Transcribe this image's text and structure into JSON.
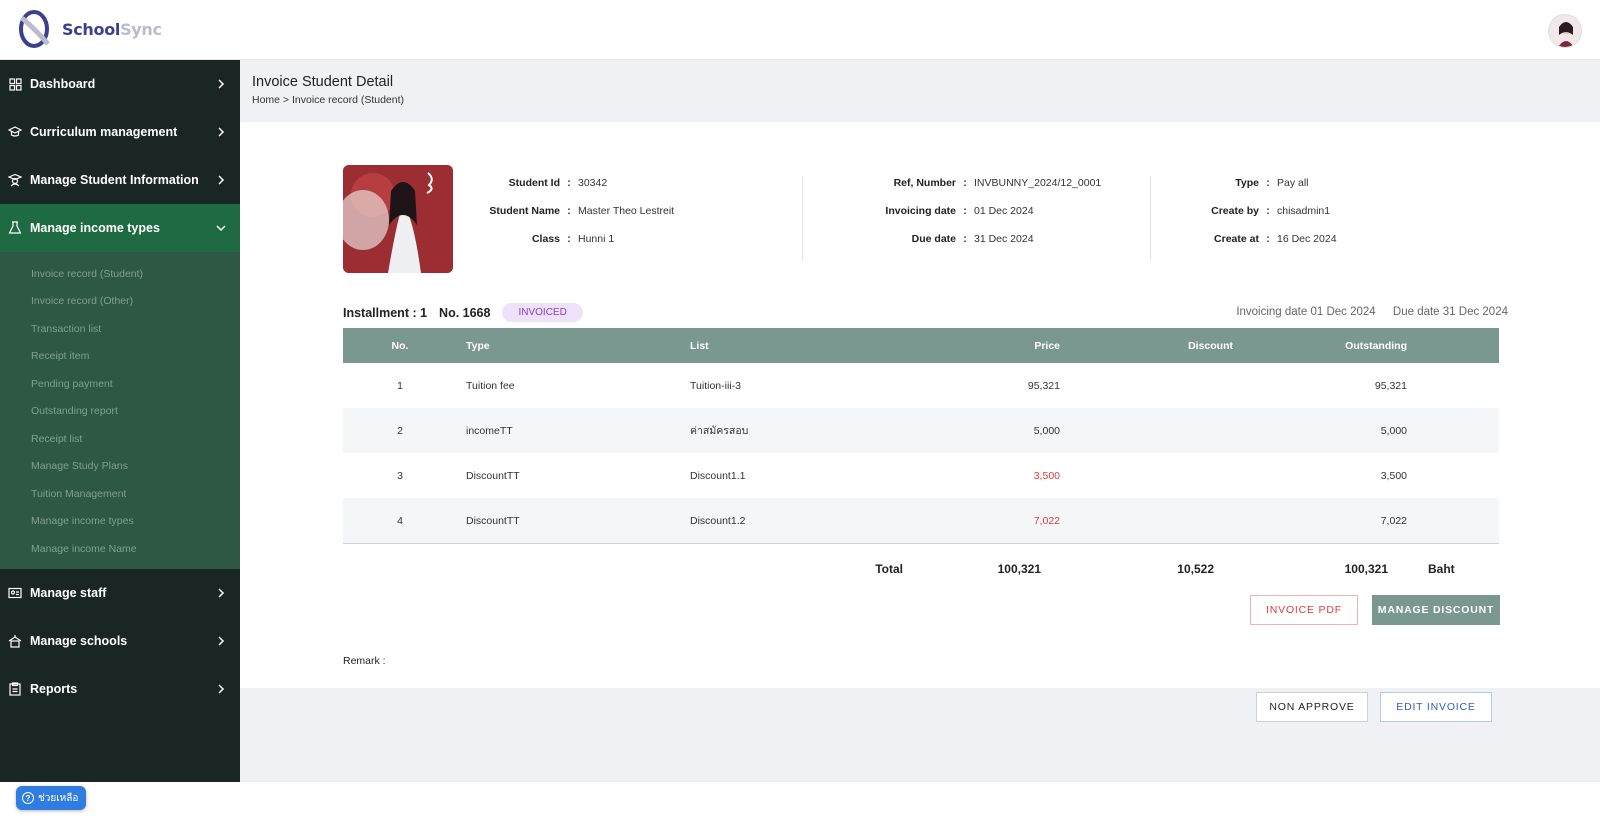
{
  "app": {
    "logo_primary": "School",
    "logo_secondary": "Sync"
  },
  "sidebar": {
    "items": [
      {
        "label": "Dashboard",
        "icon": "grid-icon"
      },
      {
        "label": "Curriculum management",
        "icon": "graduation-cap-icon"
      },
      {
        "label": "Manage Student Information",
        "icon": "student-icon"
      },
      {
        "label": "Manage income types",
        "icon": "flask-icon",
        "active": true
      },
      {
        "label": "Manage staff",
        "icon": "id-card-icon"
      },
      {
        "label": "Manage schools",
        "icon": "school-icon"
      },
      {
        "label": "Reports",
        "icon": "clipboard-icon"
      }
    ],
    "submenu": [
      "Invoice record (Student)",
      "Invoice record (Other)",
      "Transaction list",
      "Receipt item",
      "Pending payment",
      "Outstanding report",
      "Receipt list",
      "Manage Study Plans",
      "Tuition Management",
      "Manage income types",
      "Manage income Name"
    ]
  },
  "page": {
    "title": "Invoice Student Detail",
    "breadcrumb": "Home > Invoice record (Student)"
  },
  "student": {
    "id_label": "Student Id",
    "id": "30342",
    "name_label": "Student Name",
    "name": "Master Theo Lestreit",
    "class_label": "Class",
    "class": "Hunni 1"
  },
  "invoice": {
    "ref_label": "Ref, Number",
    "ref": "INVBUNNY_2024/12_0001",
    "inv_date_label": "Invoicing date",
    "inv_date": "01 Dec 2024",
    "due_label": "Due date",
    "due": "31 Dec 2024",
    "type_label": "Type",
    "type": "Pay all",
    "create_by_label": "Create by",
    "create_by": "chisadmin1",
    "create_at_label": "Create at",
    "create_at": "16 Dec 2024"
  },
  "installment": {
    "label": "Installment : 1",
    "number": "No. 1668",
    "status": "INVOICED",
    "invoicing_date": "Invoicing date 01 Dec 2024",
    "due_date": "Due date 31 Dec 2024"
  },
  "table": {
    "headers": {
      "no": "No.",
      "type": "Type",
      "list": "List",
      "price": "Price",
      "discount": "Discount",
      "outstanding": "Outstanding"
    },
    "rows": [
      {
        "no": "1",
        "type": "Tuition fee",
        "list": "Tuition-iii-3",
        "price": "95,321",
        "discount": "",
        "outstanding": "95,321"
      },
      {
        "no": "2",
        "type": "incomeTT",
        "list": "ค่าสมัครสอบ",
        "price": "5,000",
        "discount": "",
        "outstanding": "5,000"
      },
      {
        "no": "3",
        "type": "DiscountTT",
        "list": "Discount1.1",
        "price": "3,500",
        "discount": "",
        "outstanding": "3,500"
      },
      {
        "no": "4",
        "type": "DiscountTT",
        "list": "Discount1.2",
        "price": "7,022",
        "discount": "",
        "outstanding": "7,022"
      }
    ],
    "total_label": "Total",
    "total_price": "100,321",
    "total_discount": "10,522",
    "total_outstanding": "100,321",
    "currency": "Baht"
  },
  "buttons": {
    "invoice_pdf": "INVOICE PDF",
    "manage_discount": "MANAGE DISCOUNT",
    "non_approve": "NON APPROVE",
    "edit_invoice": "EDIT INVOICE"
  },
  "remark_label": "Remark :",
  "help_label": "ช่วยเหลือ",
  "colors": {
    "sidebar": "#1a2623",
    "active": "#1e6b43",
    "submenu": "#2e5744",
    "table_header": "#7b9890",
    "discount_red": "#e03b3b"
  }
}
